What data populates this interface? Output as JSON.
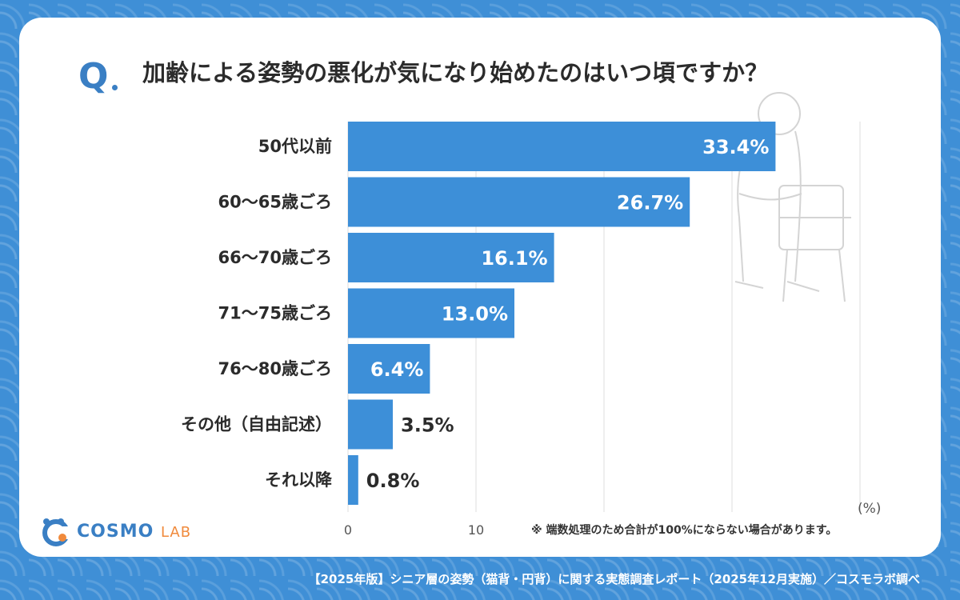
{
  "question": {
    "mark": "Q",
    "text": "加齢による姿勢の悪化が気になり始めたのはいつ頃ですか？"
  },
  "chart_data": {
    "type": "bar",
    "orientation": "horizontal",
    "categories": [
      "50代以前",
      "60〜65歳ごろ",
      "66〜70歳ごろ",
      "71〜75歳ごろ",
      "76〜80歳ごろ",
      "その他（自由記述）",
      "それ以降"
    ],
    "values": [
      33.4,
      26.7,
      16.1,
      13.0,
      6.4,
      3.5,
      0.8
    ],
    "value_labels": [
      "33.4%",
      "26.7%",
      "16.1%",
      "13.0%",
      "6.4%",
      "3.5%",
      "0.8%"
    ],
    "xlim": [
      0,
      40
    ],
    "x_ticks": [
      "0",
      "10",
      "20",
      "30",
      "40"
    ],
    "xlabel": "(%)",
    "grid": true,
    "bar_color": "#3d8fd8"
  },
  "note": "※ 端数処理のため合計が100%にならない場合があります。",
  "logo": {
    "main": "COSMO",
    "sub": "LAB"
  },
  "footer": "【2025年版】シニア層の姿勢（猫背・円背）に関する実態調査レポート（2025年12月実施）／コスモラボ調べ"
}
